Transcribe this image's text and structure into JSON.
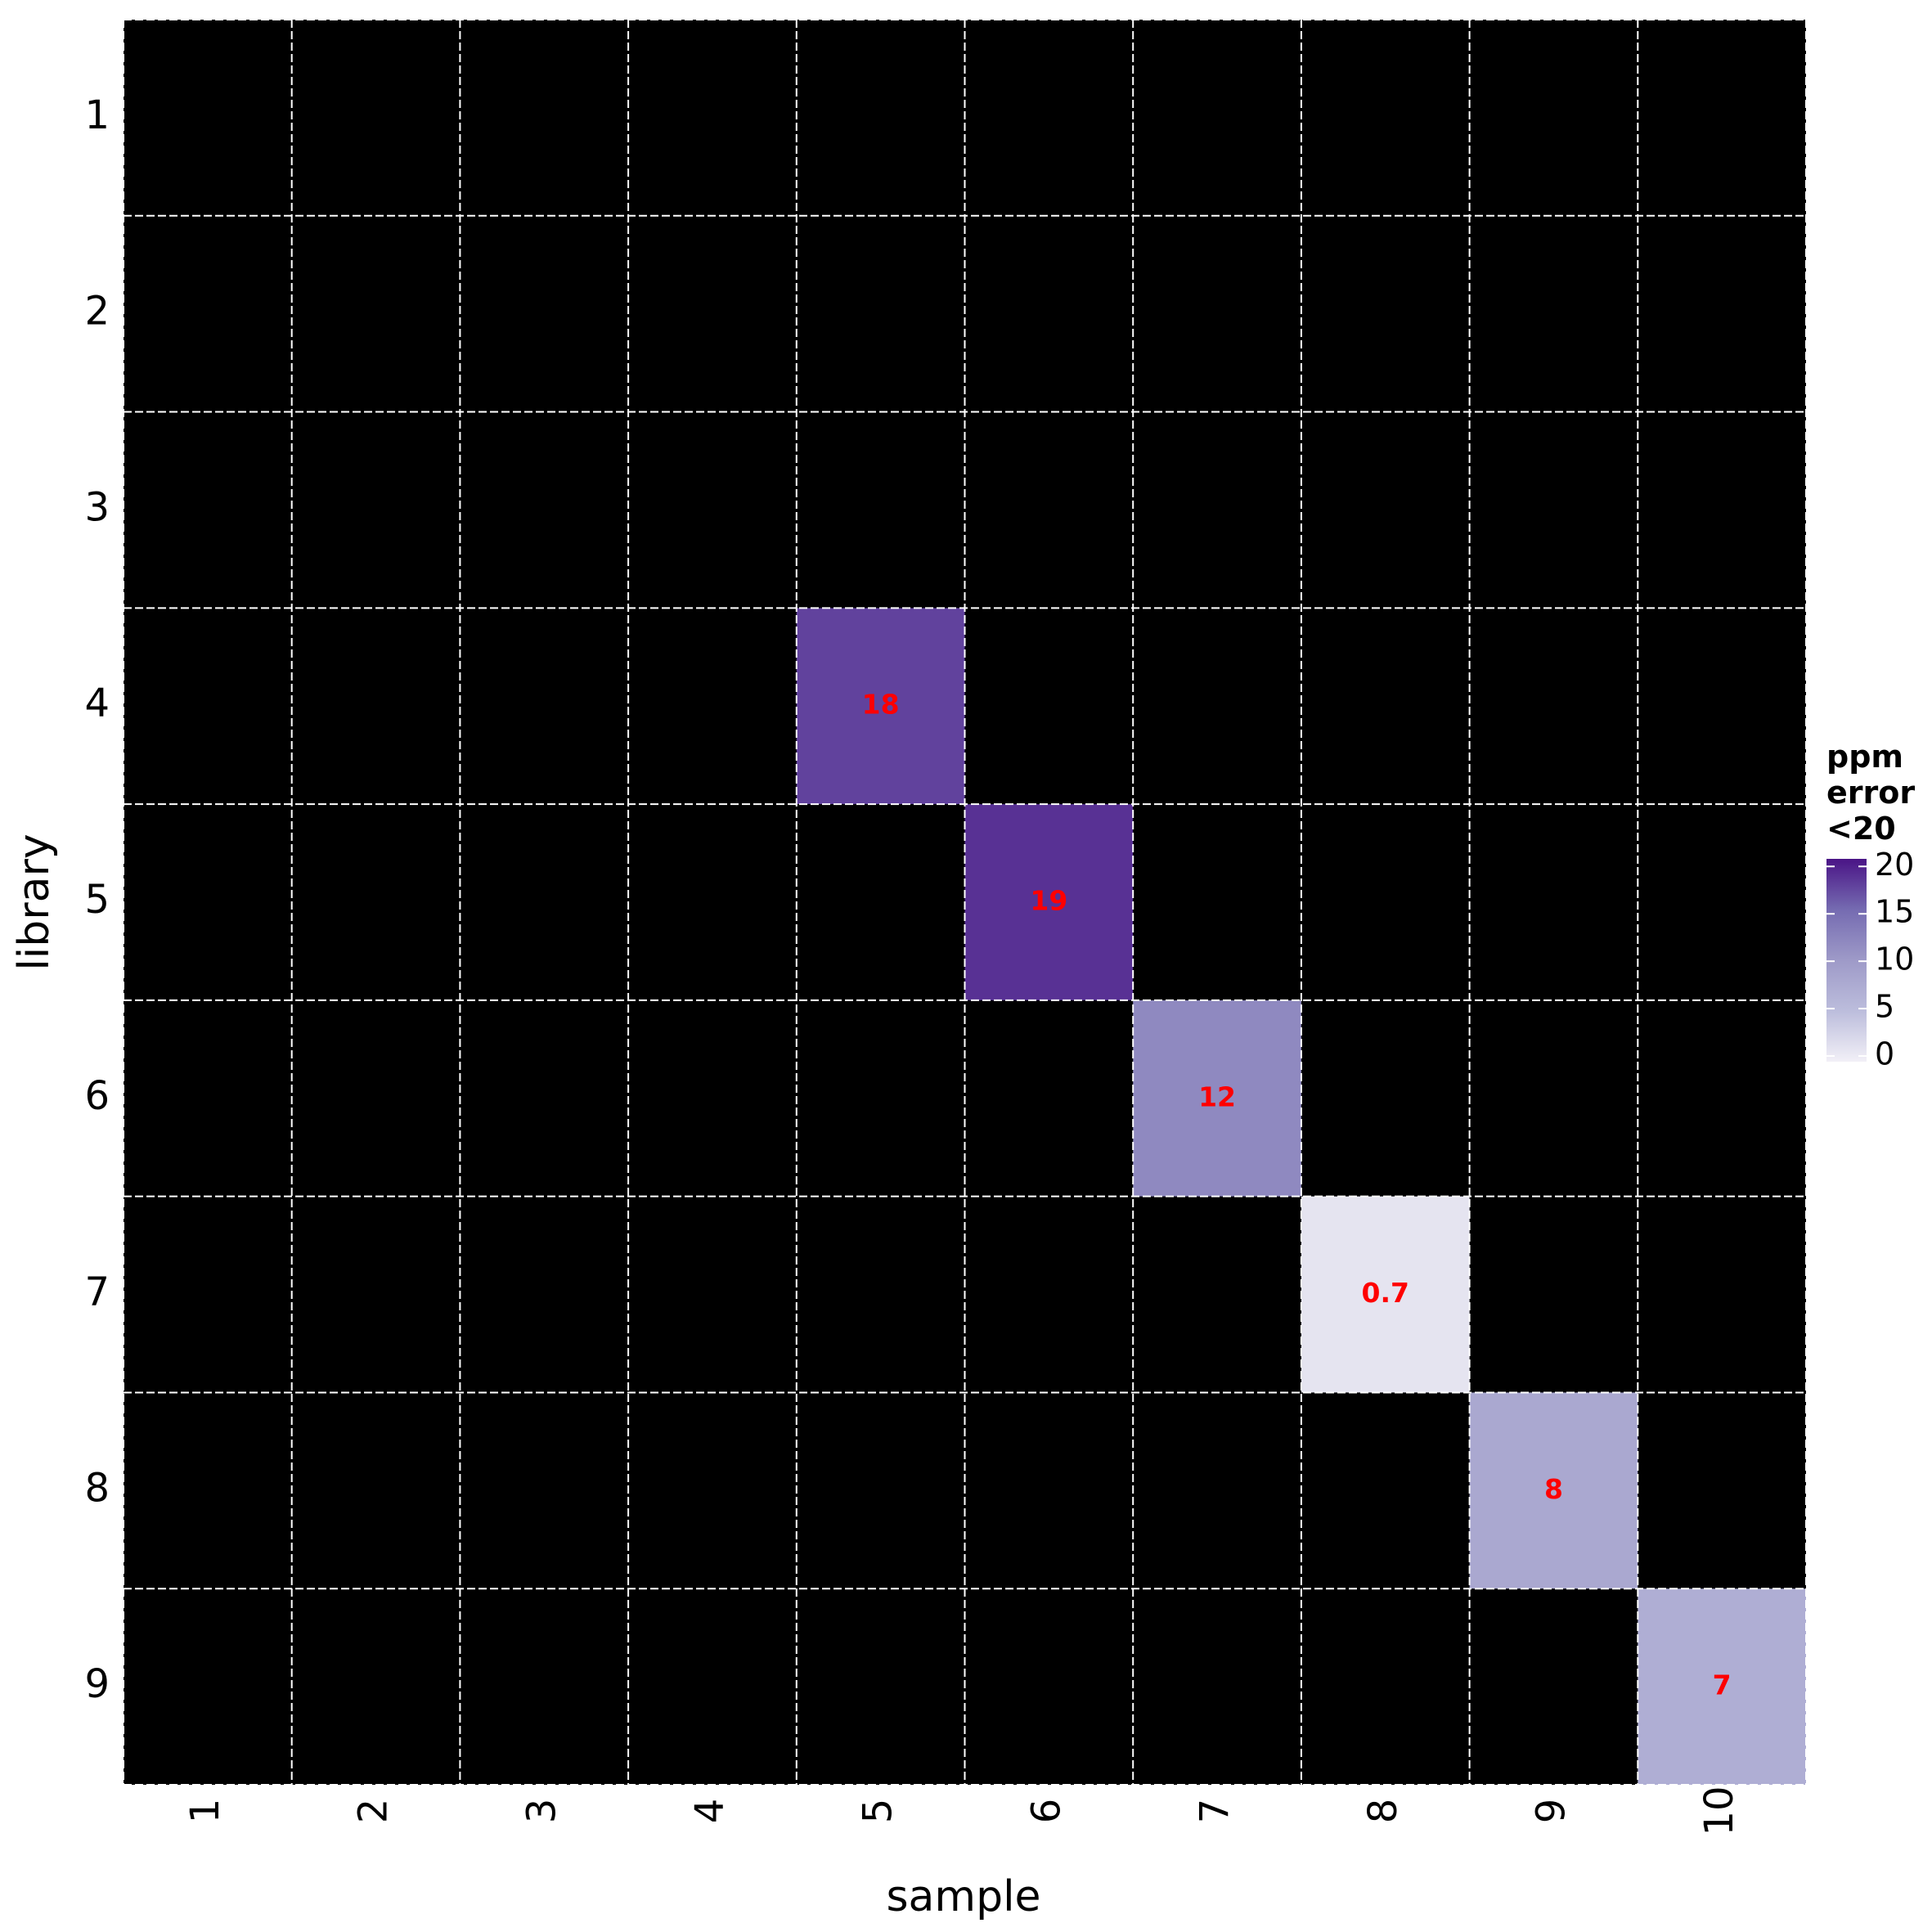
{
  "chart_data": {
    "type": "heatmap",
    "x_label": "sample",
    "y_label": "library",
    "x_categories": [
      "1",
      "2",
      "3",
      "4",
      "5",
      "6",
      "7",
      "8",
      "9",
      "10"
    ],
    "y_categories": [
      "1",
      "2",
      "3",
      "4",
      "5",
      "6",
      "7",
      "8",
      "9"
    ],
    "z": [
      [
        null,
        null,
        null,
        null,
        null,
        null,
        null,
        null,
        null,
        null
      ],
      [
        null,
        null,
        null,
        null,
        null,
        null,
        null,
        null,
        null,
        null
      ],
      [
        null,
        null,
        null,
        null,
        null,
        null,
        null,
        null,
        null,
        null
      ],
      [
        null,
        null,
        null,
        null,
        18,
        null,
        null,
        null,
        null,
        null
      ],
      [
        null,
        null,
        null,
        null,
        null,
        19,
        null,
        null,
        null,
        null
      ],
      [
        null,
        null,
        null,
        null,
        null,
        null,
        12,
        null,
        null,
        null
      ],
      [
        null,
        null,
        null,
        null,
        null,
        null,
        null,
        0.7,
        null,
        null
      ],
      [
        null,
        null,
        null,
        null,
        null,
        null,
        null,
        null,
        8,
        null
      ],
      [
        null,
        null,
        null,
        null,
        null,
        null,
        null,
        null,
        null,
        7
      ]
    ],
    "na_color": "#000000",
    "label_color": "#ff0000",
    "grid_color": "#ffffff",
    "colorscale": [
      "#f2f0f7",
      "#bcbddc",
      "#9e9ac8",
      "#756bb1",
      "#4a1486"
    ],
    "legend_title": "ppm error <20",
    "clim": [
      -0.6,
      20.8
    ],
    "cticks": [
      0,
      5,
      10,
      15,
      20
    ]
  }
}
